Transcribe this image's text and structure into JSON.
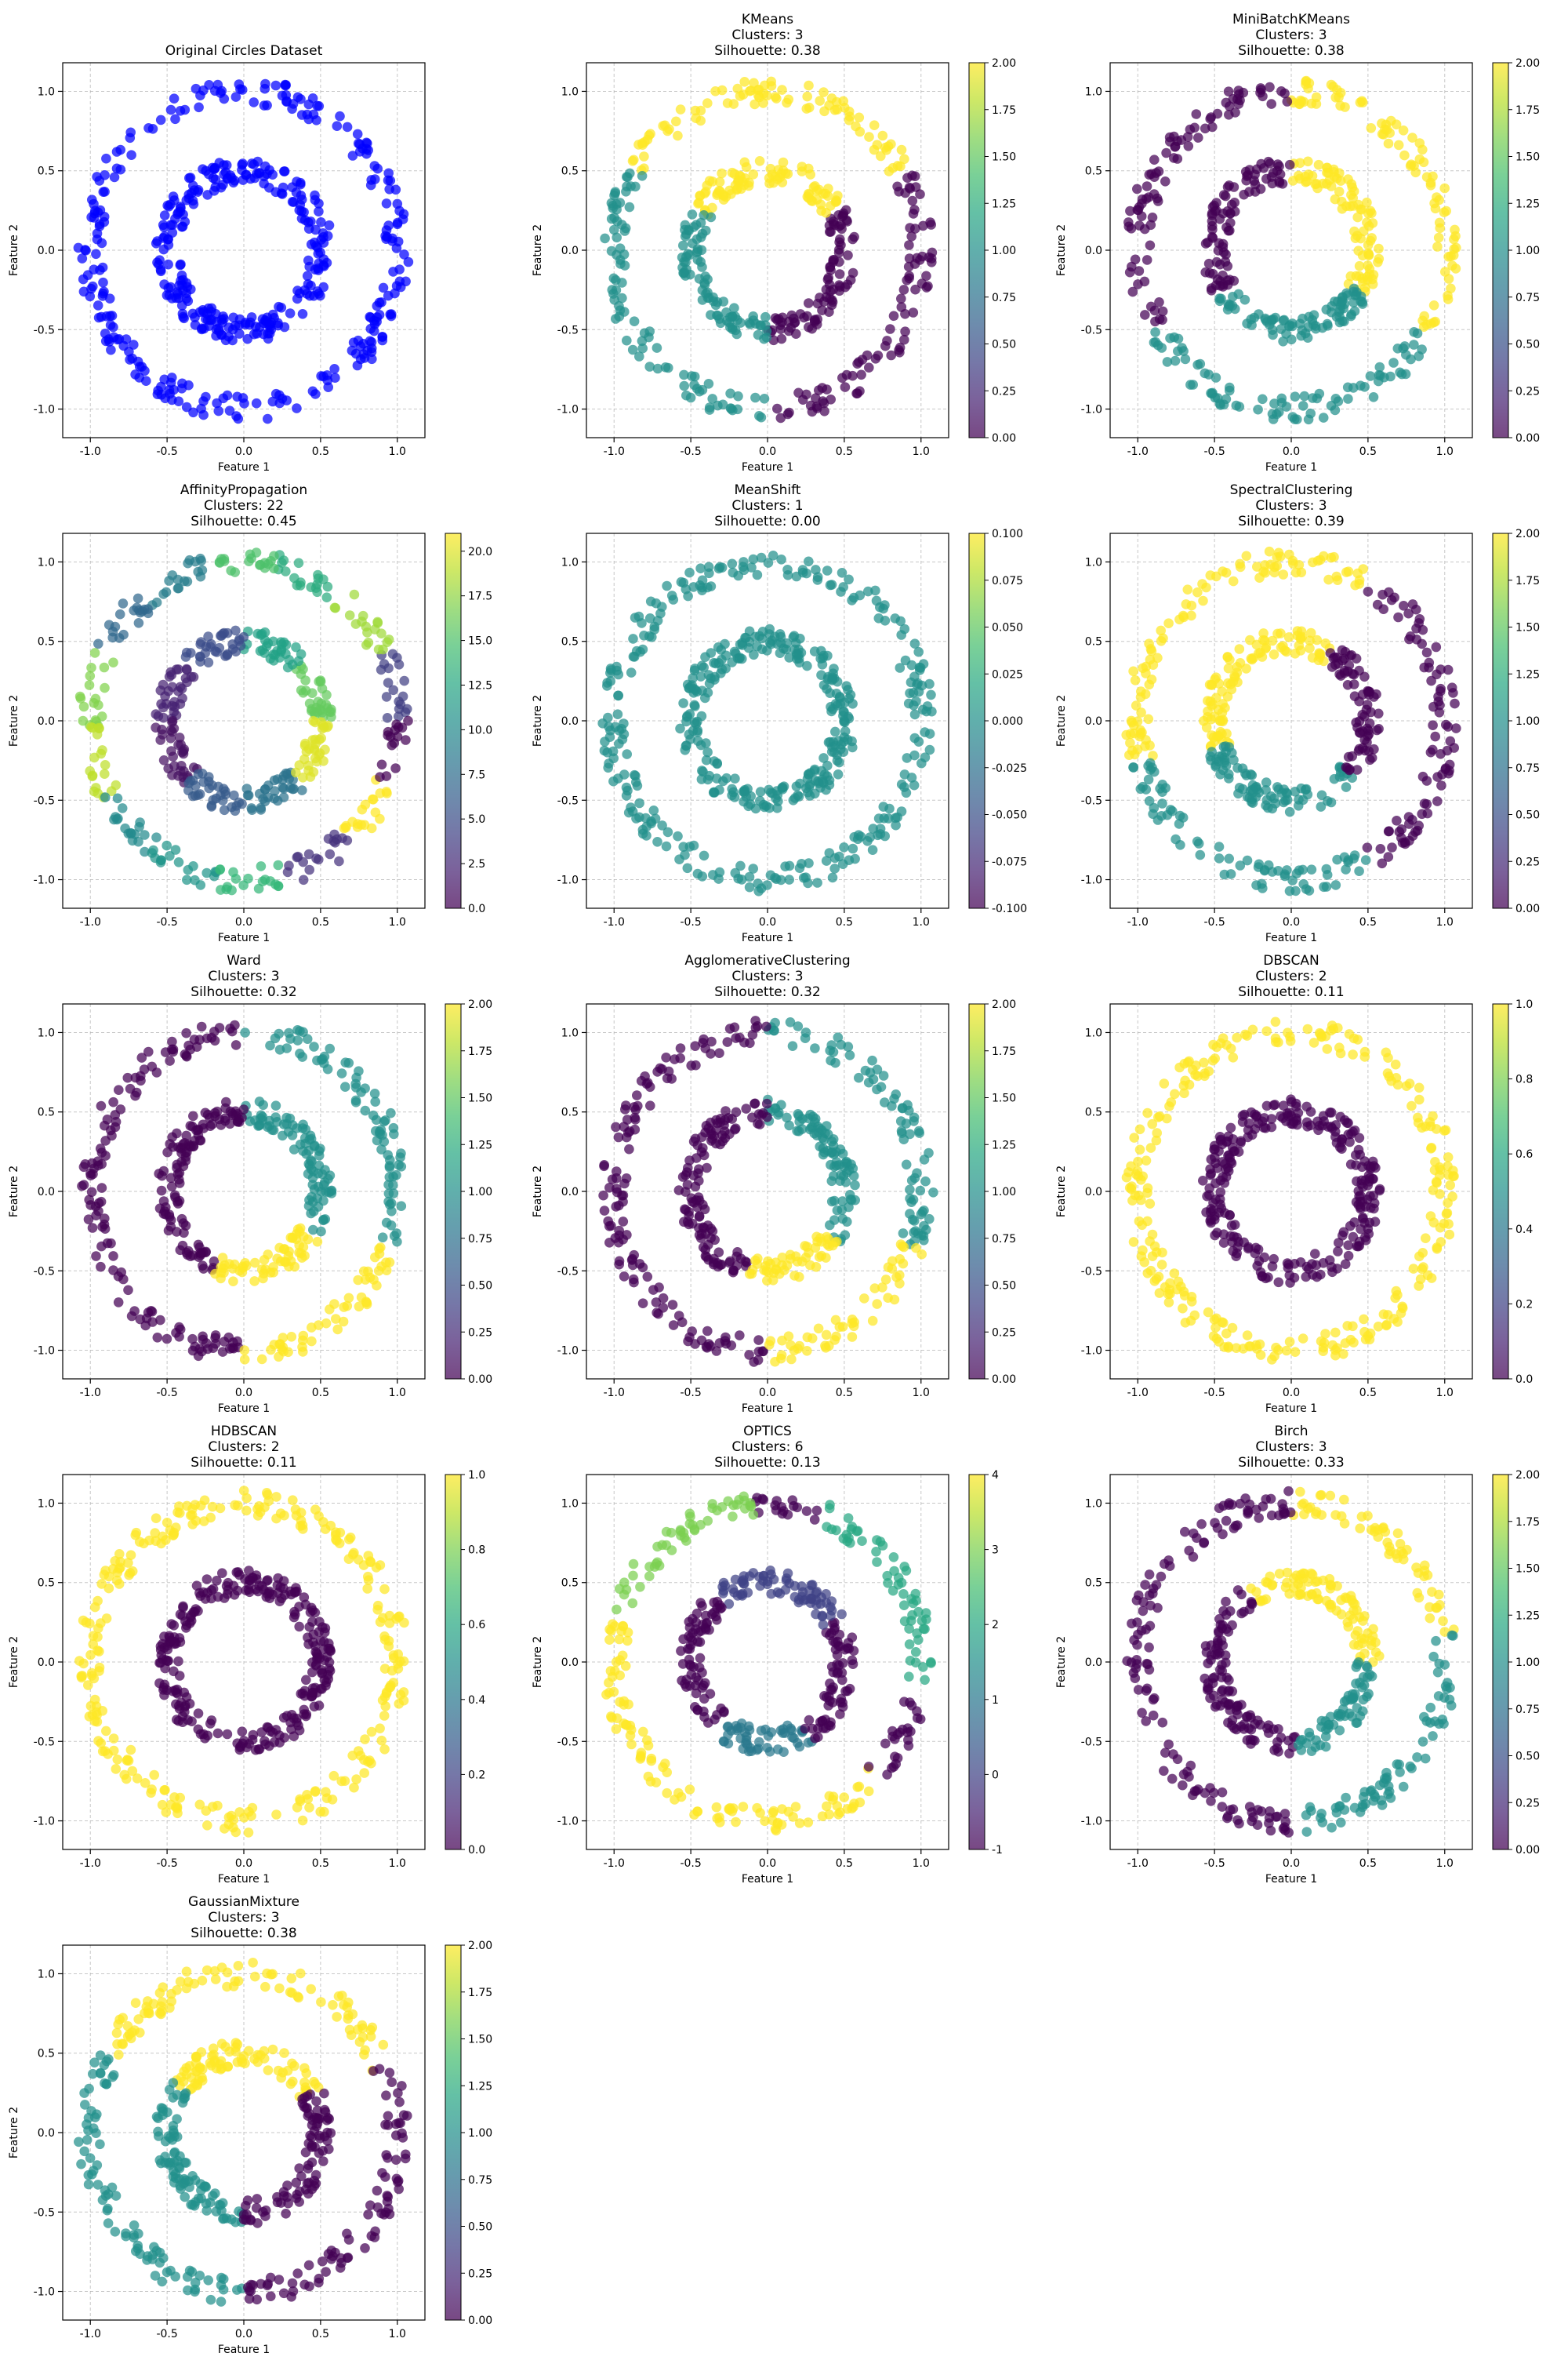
{
  "chart_data": [
    {
      "type": "scatter",
      "title": "Original Circles Dataset",
      "xlabel": "Feature 1",
      "ylabel": "Feature 2",
      "xlim": [
        -1.18,
        1.18
      ],
      "ylim": [
        -1.18,
        1.18
      ],
      "xticks": [
        "-1.0",
        "-0.5",
        "0.0",
        "0.5",
        "1.0"
      ],
      "yticks": [
        "-1.0",
        "-0.5",
        "0.0",
        "0.5",
        "1.0"
      ],
      "grid": true,
      "colorbar": null,
      "point_color": "#0000ff",
      "inner_ring_radius": 0.5,
      "outer_ring_radius": 1.0,
      "clusters": [
        {
          "ring": "inner",
          "from": 0,
          "to": 360,
          "label": 0
        },
        {
          "ring": "outer",
          "from": 0,
          "to": 360,
          "label": 0
        }
      ]
    },
    {
      "type": "scatter",
      "title": "KMeans",
      "subtitle": [
        "Clusters: 3",
        "Silhouette: 0.38"
      ],
      "xlabel": "Feature 1",
      "ylabel": "Feature 2",
      "xlim": [
        -1.18,
        1.18
      ],
      "ylim": [
        -1.18,
        1.18
      ],
      "xticks": [
        "-1.0",
        "-0.5",
        "0.0",
        "0.5",
        "1.0"
      ],
      "yticks": [
        "-1.0",
        "-0.5",
        "0.0",
        "0.5",
        "1.0"
      ],
      "grid": true,
      "colorbar": {
        "min": 0,
        "max": 2,
        "ticks": [
          "0.00",
          "0.25",
          "0.50",
          "0.75",
          "1.00",
          "1.25",
          "1.50",
          "1.75",
          "2.00"
        ]
      },
      "clusters": [
        {
          "ring": "inner",
          "from": -90,
          "to": 30,
          "label": 0
        },
        {
          "ring": "inner",
          "from": 30,
          "to": 150,
          "label": 2
        },
        {
          "ring": "inner",
          "from": 150,
          "to": 270,
          "label": 1
        },
        {
          "ring": "outer",
          "from": -90,
          "to": 30,
          "label": 0
        },
        {
          "ring": "outer",
          "from": 30,
          "to": 150,
          "label": 2
        },
        {
          "ring": "outer",
          "from": 150,
          "to": 270,
          "label": 1
        }
      ]
    },
    {
      "type": "scatter",
      "title": "MiniBatchKMeans",
      "subtitle": [
        "Clusters: 3",
        "Silhouette: 0.38"
      ],
      "xlabel": "Feature 1",
      "ylabel": "Feature 2",
      "xlim": [
        -1.18,
        1.18
      ],
      "ylim": [
        -1.18,
        1.18
      ],
      "xticks": [
        "-1.0",
        "-0.5",
        "0.0",
        "0.5",
        "1.0"
      ],
      "yticks": [
        "-1.0",
        "-0.5",
        "0.0",
        "0.5",
        "1.0"
      ],
      "grid": true,
      "colorbar": {
        "min": 0,
        "max": 2,
        "ticks": [
          "0.00",
          "0.25",
          "0.50",
          "0.75",
          "1.00",
          "1.25",
          "1.50",
          "1.75",
          "2.00"
        ]
      },
      "clusters": [
        {
          "ring": "inner",
          "from": -30,
          "to": 90,
          "label": 2
        },
        {
          "ring": "inner",
          "from": 90,
          "to": 210,
          "label": 0
        },
        {
          "ring": "inner",
          "from": 210,
          "to": 330,
          "label": 1
        },
        {
          "ring": "outer",
          "from": -30,
          "to": 90,
          "label": 2
        },
        {
          "ring": "outer",
          "from": 90,
          "to": 210,
          "label": 0
        },
        {
          "ring": "outer",
          "from": 210,
          "to": 330,
          "label": 1
        }
      ]
    },
    {
      "type": "scatter",
      "title": "AffinityPropagation",
      "subtitle": [
        "Clusters: 22",
        "Silhouette: 0.45"
      ],
      "xlabel": "Feature 1",
      "ylabel": "Feature 2",
      "xlim": [
        -1.18,
        1.18
      ],
      "ylim": [
        -1.18,
        1.18
      ],
      "xticks": [
        "-1.0",
        "-0.5",
        "0.0",
        "0.5",
        "1.0"
      ],
      "yticks": [
        "-1.0",
        "-0.5",
        "0.0",
        "0.5",
        "1.0"
      ],
      "grid": true,
      "colorbar": {
        "min": 0,
        "max": 21,
        "ticks": [
          "0.0",
          "2.5",
          "5.0",
          "7.5",
          "10.0",
          "12.5",
          "15.0",
          "17.5",
          "20.0"
        ]
      },
      "clusters": [
        {
          "ring": "inner",
          "from": 0,
          "to": 45,
          "label": 16
        },
        {
          "ring": "inner",
          "from": 45,
          "to": 90,
          "label": 12
        },
        {
          "ring": "inner",
          "from": 90,
          "to": 135,
          "label": 5
        },
        {
          "ring": "inner",
          "from": 135,
          "to": 180,
          "label": 2
        },
        {
          "ring": "inner",
          "from": 180,
          "to": 225,
          "label": 1
        },
        {
          "ring": "inner",
          "from": 225,
          "to": 270,
          "label": 6
        },
        {
          "ring": "inner",
          "from": 270,
          "to": 315,
          "label": 8
        },
        {
          "ring": "inner",
          "from": 315,
          "to": 360,
          "label": 20
        },
        {
          "ring": "outer",
          "from": 0,
          "to": 26,
          "label": 4
        },
        {
          "ring": "outer",
          "from": 26,
          "to": 52,
          "label": 18
        },
        {
          "ring": "outer",
          "from": 52,
          "to": 78,
          "label": 13
        },
        {
          "ring": "outer",
          "from": 78,
          "to": 104,
          "label": 15
        },
        {
          "ring": "outer",
          "from": 104,
          "to": 130,
          "label": 9
        },
        {
          "ring": "outer",
          "from": 130,
          "to": 156,
          "label": 7
        },
        {
          "ring": "outer",
          "from": 156,
          "to": 182,
          "label": 17
        },
        {
          "ring": "outer",
          "from": 182,
          "to": 208,
          "label": 19
        },
        {
          "ring": "outer",
          "from": 208,
          "to": 234,
          "label": 10
        },
        {
          "ring": "outer",
          "from": 234,
          "to": 260,
          "label": 11
        },
        {
          "ring": "outer",
          "from": 260,
          "to": 286,
          "label": 14
        },
        {
          "ring": "outer",
          "from": 286,
          "to": 312,
          "label": 3
        },
        {
          "ring": "outer",
          "from": 312,
          "to": 338,
          "label": 21
        },
        {
          "ring": "outer",
          "from": 338,
          "to": 360,
          "label": 0
        }
      ]
    },
    {
      "type": "scatter",
      "title": "MeanShift",
      "subtitle": [
        "Clusters: 1",
        "Silhouette: 0.00"
      ],
      "xlabel": "Feature 1",
      "ylabel": "Feature 2",
      "xlim": [
        -1.18,
        1.18
      ],
      "ylim": [
        -1.18,
        1.18
      ],
      "xticks": [
        "-1.0",
        "-0.5",
        "0.0",
        "0.5",
        "1.0"
      ],
      "yticks": [
        "-1.0",
        "-0.5",
        "0.0",
        "0.5",
        "1.0"
      ],
      "grid": true,
      "colorbar": {
        "min": -0.1,
        "max": 0.1,
        "ticks": [
          "-0.100",
          "-0.075",
          "-0.050",
          "-0.025",
          "0.000",
          "0.025",
          "0.050",
          "0.075",
          "0.100"
        ]
      },
      "clusters": [
        {
          "ring": "inner",
          "from": 0,
          "to": 360,
          "label": 0
        },
        {
          "ring": "outer",
          "from": 0,
          "to": 360,
          "label": 0
        }
      ]
    },
    {
      "type": "scatter",
      "title": "SpectralClustering",
      "subtitle": [
        "Clusters: 3",
        "Silhouette: 0.39"
      ],
      "xlabel": "Feature 1",
      "ylabel": "Feature 2",
      "xlim": [
        -1.18,
        1.18
      ],
      "ylim": [
        -1.18,
        1.18
      ],
      "xticks": [
        "-1.0",
        "-0.5",
        "0.0",
        "0.5",
        "1.0"
      ],
      "yticks": [
        "-1.0",
        "-0.5",
        "0.0",
        "0.5",
        "1.0"
      ],
      "grid": true,
      "colorbar": {
        "min": 0,
        "max": 2,
        "ticks": [
          "0.00",
          "0.25",
          "0.50",
          "0.75",
          "1.00",
          "1.25",
          "1.50",
          "1.75",
          "2.00"
        ]
      },
      "clusters": [
        {
          "ring": "inner",
          "from": 60,
          "to": 200,
          "label": 2
        },
        {
          "ring": "inner",
          "from": 200,
          "to": 320,
          "label": 1
        },
        {
          "ring": "inner",
          "from": 320,
          "to": 420,
          "label": 0
        },
        {
          "ring": "outer",
          "from": 60,
          "to": 195,
          "label": 2
        },
        {
          "ring": "outer",
          "from": 195,
          "to": 300,
          "label": 1
        },
        {
          "ring": "outer",
          "from": 300,
          "to": 420,
          "label": 0
        }
      ]
    },
    {
      "type": "scatter",
      "title": "Ward",
      "subtitle": [
        "Clusters: 3",
        "Silhouette: 0.32"
      ],
      "xlabel": "Feature 1",
      "ylabel": "Feature 2",
      "xlim": [
        -1.18,
        1.18
      ],
      "ylim": [
        -1.18,
        1.18
      ],
      "xticks": [
        "-1.0",
        "-0.5",
        "0.0",
        "0.5",
        "1.0"
      ],
      "yticks": [
        "-1.0",
        "-0.5",
        "0.0",
        "0.5",
        "1.0"
      ],
      "grid": true,
      "colorbar": {
        "min": 0,
        "max": 2,
        "ticks": [
          "0.00",
          "0.25",
          "0.50",
          "0.75",
          "1.00",
          "1.25",
          "1.50",
          "1.75",
          "2.00"
        ]
      },
      "clusters": [
        {
          "ring": "inner",
          "from": -30,
          "to": 90,
          "label": 1
        },
        {
          "ring": "inner",
          "from": 90,
          "to": 250,
          "label": 0
        },
        {
          "ring": "inner",
          "from": 250,
          "to": 330,
          "label": 2
        },
        {
          "ring": "outer",
          "from": -20,
          "to": 90,
          "label": 1
        },
        {
          "ring": "outer",
          "from": 90,
          "to": 270,
          "label": 0
        },
        {
          "ring": "outer",
          "from": 270,
          "to": 340,
          "label": 2
        }
      ]
    },
    {
      "type": "scatter",
      "title": "AgglomerativeClustering",
      "subtitle": [
        "Clusters: 3",
        "Silhouette: 0.32"
      ],
      "xlabel": "Feature 1",
      "ylabel": "Feature 2",
      "xlim": [
        -1.18,
        1.18
      ],
      "ylim": [
        -1.18,
        1.18
      ],
      "xticks": [
        "-1.0",
        "-0.5",
        "0.0",
        "0.5",
        "1.0"
      ],
      "yticks": [
        "-1.0",
        "-0.5",
        "0.0",
        "0.5",
        "1.0"
      ],
      "grid": true,
      "colorbar": {
        "min": 0,
        "max": 2,
        "ticks": [
          "0.00",
          "0.25",
          "0.50",
          "0.75",
          "1.00",
          "1.25",
          "1.50",
          "1.75",
          "2.00"
        ]
      },
      "clusters": [
        {
          "ring": "inner",
          "from": -35,
          "to": 90,
          "label": 1
        },
        {
          "ring": "inner",
          "from": 90,
          "to": 255,
          "label": 0
        },
        {
          "ring": "inner",
          "from": 255,
          "to": 325,
          "label": 2
        },
        {
          "ring": "outer",
          "from": -20,
          "to": 90,
          "label": 1
        },
        {
          "ring": "outer",
          "from": 90,
          "to": 270,
          "label": 0
        },
        {
          "ring": "outer",
          "from": 270,
          "to": 340,
          "label": 2
        }
      ]
    },
    {
      "type": "scatter",
      "title": "DBSCAN",
      "subtitle": [
        "Clusters: 2",
        "Silhouette: 0.11"
      ],
      "xlabel": "Feature 1",
      "ylabel": "Feature 2",
      "xlim": [
        -1.18,
        1.18
      ],
      "ylim": [
        -1.18,
        1.18
      ],
      "xticks": [
        "-1.0",
        "-0.5",
        "0.0",
        "0.5",
        "1.0"
      ],
      "yticks": [
        "-1.0",
        "-0.5",
        "0.0",
        "0.5",
        "1.0"
      ],
      "grid": true,
      "colorbar": {
        "min": 0,
        "max": 1,
        "ticks": [
          "0.0",
          "0.2",
          "0.4",
          "0.6",
          "0.8",
          "1.0"
        ]
      },
      "clusters": [
        {
          "ring": "inner",
          "from": 0,
          "to": 360,
          "label": 0
        },
        {
          "ring": "outer",
          "from": 0,
          "to": 360,
          "label": 1
        }
      ]
    },
    {
      "type": "scatter",
      "title": "HDBSCAN",
      "subtitle": [
        "Clusters: 2",
        "Silhouette: 0.11"
      ],
      "xlabel": "Feature 1",
      "ylabel": "Feature 2",
      "xlim": [
        -1.18,
        1.18
      ],
      "ylim": [
        -1.18,
        1.18
      ],
      "xticks": [
        "-1.0",
        "-0.5",
        "0.0",
        "0.5",
        "1.0"
      ],
      "yticks": [
        "-1.0",
        "-0.5",
        "0.0",
        "0.5",
        "1.0"
      ],
      "grid": true,
      "colorbar": {
        "min": 0,
        "max": 1,
        "ticks": [
          "0.0",
          "0.2",
          "0.4",
          "0.6",
          "0.8",
          "1.0"
        ]
      },
      "clusters": [
        {
          "ring": "inner",
          "from": 0,
          "to": 360,
          "label": 0
        },
        {
          "ring": "outer",
          "from": 0,
          "to": 360,
          "label": 1
        }
      ]
    },
    {
      "type": "scatter",
      "title": "OPTICS",
      "subtitle": [
        "Clusters: 6",
        "Silhouette: 0.13"
      ],
      "xlabel": "Feature 1",
      "ylabel": "Feature 2",
      "xlim": [
        -1.18,
        1.18
      ],
      "ylim": [
        -1.18,
        1.18
      ],
      "xticks": [
        "-1.0",
        "-0.5",
        "0.0",
        "0.5",
        "1.0"
      ],
      "yticks": [
        "-1.0",
        "-0.5",
        "0.0",
        "0.5",
        "1.0"
      ],
      "grid": true,
      "colorbar": {
        "min": -1,
        "max": 4,
        "ticks": [
          "-1",
          "0",
          "1",
          "2",
          "3",
          "4"
        ]
      },
      "clusters": [
        {
          "ring": "inner",
          "from": 0,
          "to": 30,
          "label": -1
        },
        {
          "ring": "inner",
          "from": 30,
          "to": 130,
          "label": 0
        },
        {
          "ring": "inner",
          "from": 130,
          "to": 230,
          "label": -1
        },
        {
          "ring": "inner",
          "from": 230,
          "to": 300,
          "label": 1
        },
        {
          "ring": "inner",
          "from": 300,
          "to": 360,
          "label": -1
        },
        {
          "ring": "outer",
          "from": -10,
          "to": 70,
          "label": 2
        },
        {
          "ring": "outer",
          "from": 70,
          "to": 95,
          "label": -1
        },
        {
          "ring": "outer",
          "from": 95,
          "to": 165,
          "label": 3
        },
        {
          "ring": "outer",
          "from": 165,
          "to": 315,
          "label": 4
        },
        {
          "ring": "outer",
          "from": 315,
          "to": 350,
          "label": -1
        }
      ]
    },
    {
      "type": "scatter",
      "title": "Birch",
      "subtitle": [
        "Clusters: 3",
        "Silhouette: 0.33"
      ],
      "xlabel": "Feature 1",
      "ylabel": "Feature 2",
      "xlim": [
        -1.18,
        1.18
      ],
      "ylim": [
        -1.18,
        1.18
      ],
      "xticks": [
        "-1.0",
        "-0.5",
        "0.0",
        "0.5",
        "1.0"
      ],
      "yticks": [
        "-1.0",
        "-0.5",
        "0.0",
        "0.5",
        "1.0"
      ],
      "grid": true,
      "colorbar": {
        "min": 0,
        "max": 2,
        "ticks": [
          "0.00",
          "0.25",
          "0.50",
          "0.75",
          "1.00",
          "1.25",
          "1.50",
          "1.75",
          "2.00"
        ]
      },
      "clusters": [
        {
          "ring": "inner",
          "from": 0,
          "to": 120,
          "label": 2
        },
        {
          "ring": "inner",
          "from": 120,
          "to": 275,
          "label": 0
        },
        {
          "ring": "inner",
          "from": 275,
          "to": 360,
          "label": 1
        },
        {
          "ring": "outer",
          "from": 10,
          "to": 90,
          "label": 2
        },
        {
          "ring": "outer",
          "from": 90,
          "to": 270,
          "label": 0
        },
        {
          "ring": "outer",
          "from": 270,
          "to": 370,
          "label": 1
        }
      ]
    },
    {
      "type": "scatter",
      "title": "GaussianMixture",
      "subtitle": [
        "Clusters: 3",
        "Silhouette: 0.38"
      ],
      "xlabel": "Feature 1",
      "ylabel": "Feature 2",
      "xlim": [
        -1.18,
        1.18
      ],
      "ylim": [
        -1.18,
        1.18
      ],
      "xticks": [
        "-1.0",
        "-0.5",
        "0.0",
        "0.5",
        "1.0"
      ],
      "yticks": [
        "-1.0",
        "-0.5",
        "0.0",
        "0.5",
        "1.0"
      ],
      "grid": true,
      "colorbar": {
        "min": 0,
        "max": 2,
        "ticks": [
          "0.00",
          "0.25",
          "0.50",
          "0.75",
          "1.00",
          "1.25",
          "1.50",
          "1.75",
          "2.00"
        ]
      },
      "clusters": [
        {
          "ring": "inner",
          "from": 30,
          "to": 145,
          "label": 2
        },
        {
          "ring": "inner",
          "from": 145,
          "to": 270,
          "label": 1
        },
        {
          "ring": "inner",
          "from": 270,
          "to": 390,
          "label": 0
        },
        {
          "ring": "outer",
          "from": 25,
          "to": 150,
          "label": 2
        },
        {
          "ring": "outer",
          "from": 150,
          "to": 270,
          "label": 1
        },
        {
          "ring": "outer",
          "from": 270,
          "to": 385,
          "label": 0
        }
      ]
    }
  ]
}
